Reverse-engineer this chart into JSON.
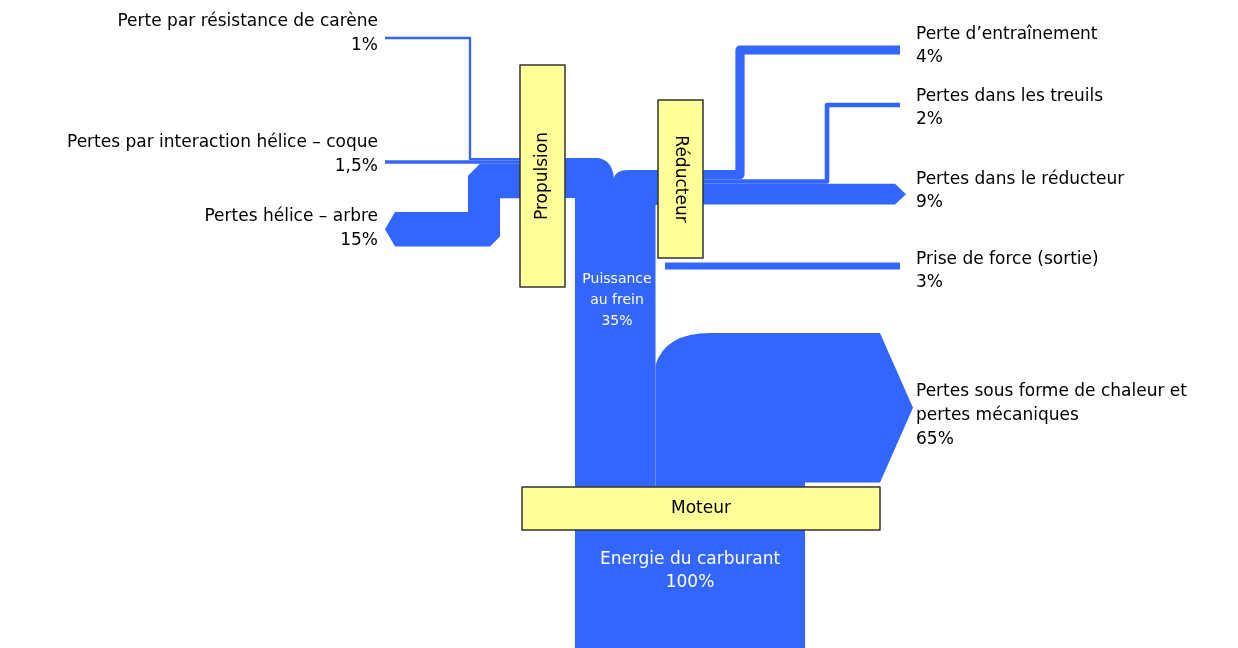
{
  "chart_data": {
    "type": "other",
    "color": "#3366ff",
    "categories": [
      "Perte par résistance de carène",
      "Pertes par interaction hélice – coque",
      "Pertes hélice – arbre",
      "Perte d’entraînement",
      "Pertes dans les treuils",
      "Pertes dans le réducteur",
      "Prise de force (sortie)",
      "Puissance au frein",
      "Pertes sous forme de chaleur et pertes mécaniques",
      "Energie du carburant"
    ],
    "values": [
      1,
      1.5,
      15,
      4,
      2,
      9,
      3,
      35,
      65,
      100
    ],
    "value_labels": [
      "1%",
      "1,5%",
      "15%",
      "4%",
      "2%",
      "9%",
      "3%",
      "35%",
      "65%",
      "100%"
    ],
    "annotations": [
      "Propulsion",
      "Réducteur",
      "Moteur"
    ]
  }
}
